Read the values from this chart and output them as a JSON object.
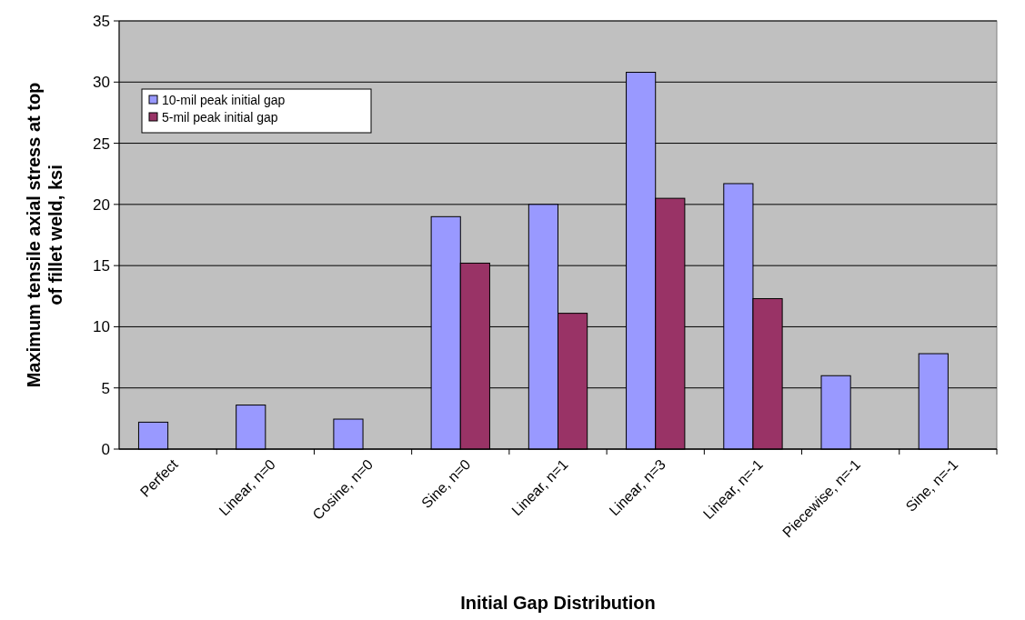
{
  "chart_data": {
    "type": "bar",
    "xlabel": "Initial Gap Distribution",
    "ylabel": "Maximum tensile axial stress at top of fillet weld, ksi",
    "categories": [
      "Perfect",
      "Linear, n=0",
      "Cosine, n=0",
      "Sine, n=0",
      "Linear, n=1",
      "Linear, n=3",
      "Linear, n=-1",
      "Piecewise, n=-1",
      "Sine, n=-1"
    ],
    "series": [
      {
        "name": "10-mil peak initial gap",
        "color": "#9999ff",
        "values": [
          2.2,
          3.6,
          2.45,
          19.0,
          20.0,
          30.8,
          21.7,
          6.0,
          7.8
        ]
      },
      {
        "name": "5-mil peak initial gap",
        "color": "#993366",
        "values": [
          null,
          null,
          null,
          15.2,
          11.1,
          20.5,
          12.3,
          null,
          null
        ]
      }
    ],
    "ylim": [
      0,
      35
    ],
    "yticks": [
      0,
      5,
      10,
      15,
      20,
      25,
      30,
      35
    ],
    "grid": "y",
    "legend": "top left"
  }
}
